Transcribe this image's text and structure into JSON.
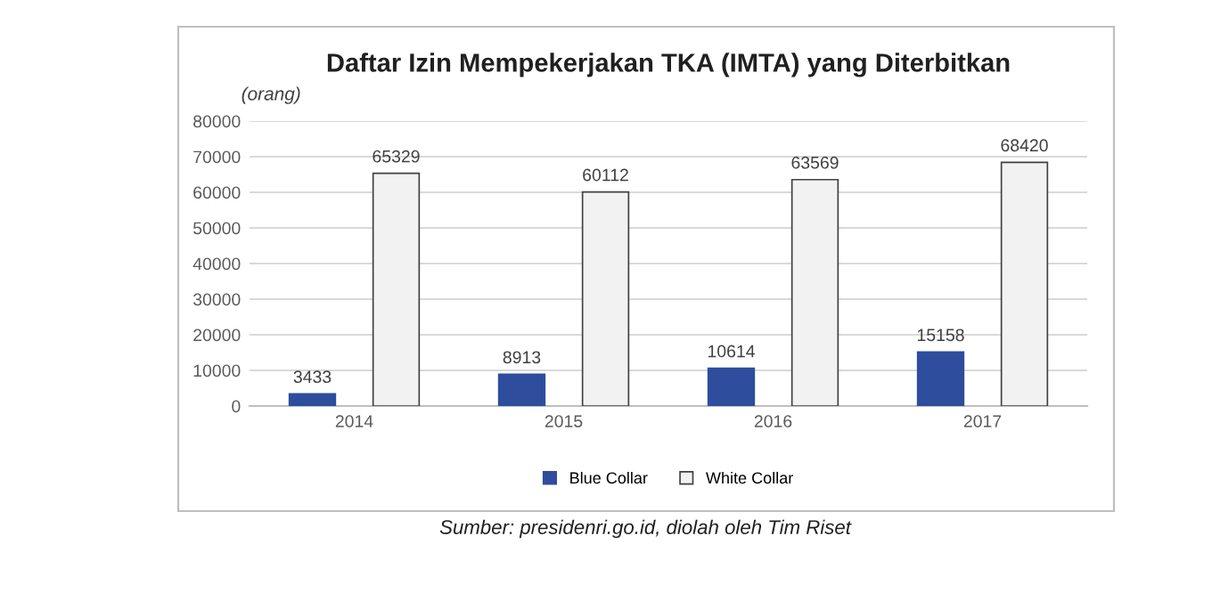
{
  "chart_data": {
    "type": "bar",
    "title": "Daftar Izin Mempekerjakan TKA (IMTA) yang Diterbitkan",
    "ylabel": "(orang)",
    "categories": [
      "2014",
      "2015",
      "2016",
      "2017"
    ],
    "series": [
      {
        "name": "Blue Collar",
        "color": "#2e4d9c",
        "values": [
          3433,
          8913,
          10614,
          15158
        ]
      },
      {
        "name": "White Collar",
        "color": "#f2f2f2",
        "values": [
          65329,
          60112,
          63569,
          68420
        ]
      }
    ],
    "ylim": [
      0,
      80000
    ],
    "yticks": [
      0,
      10000,
      20000,
      30000,
      40000,
      50000,
      60000,
      70000,
      80000
    ],
    "grid": "y",
    "legend": "bottom",
    "data_labels": true,
    "annotations": [
      "Sumber: presidenri.go.id, diolah oleh Tim Riset"
    ]
  }
}
